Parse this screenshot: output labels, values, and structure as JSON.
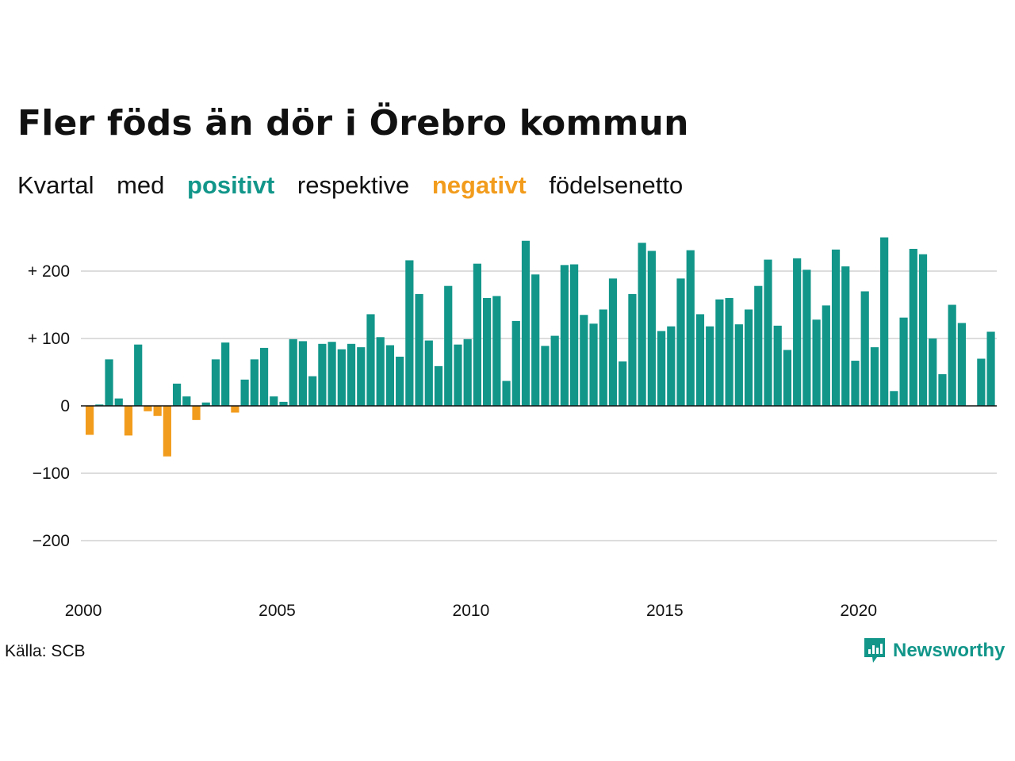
{
  "title": "Fler föds än dör i Örebro kommun",
  "subtitle": {
    "w1": "Kvartal",
    "w2": "med",
    "positive": "positivt",
    "w3": "respektive",
    "negative": "negativt",
    "w4": "födelsenetto"
  },
  "source": "Källa: SCB",
  "brand": "Newsworthy",
  "colors": {
    "positive": "#12968a",
    "negative": "#f29c1d",
    "grid": "#dddddd",
    "text": "#111111"
  },
  "icons": {
    "brand_logo": "newsworthy-logo-icon"
  },
  "chart_data": {
    "type": "bar",
    "x_start": "2000 Q1",
    "frequency": "quarterly",
    "ylim": [
      -250,
      260
    ],
    "yticks": [
      200,
      100,
      0,
      -100,
      -200
    ],
    "ytick_labels": [
      "+ 200",
      "+ 100",
      "0",
      "−100",
      "−200"
    ],
    "xticks": [
      2000,
      2005,
      2010,
      2015,
      2020
    ],
    "xtick_labels": [
      "2000",
      "2005",
      "2010",
      "2015",
      "2020"
    ],
    "grid": true,
    "values": [
      -43,
      2,
      69,
      11,
      -44,
      91,
      -8,
      -15,
      -75,
      33,
      14,
      -21,
      5,
      69,
      94,
      -10,
      39,
      69,
      86,
      14,
      6,
      99,
      96,
      44,
      92,
      95,
      84,
      92,
      87,
      136,
      102,
      90,
      73,
      216,
      166,
      97,
      59,
      178,
      91,
      99,
      211,
      160,
      163,
      37,
      126,
      245,
      195,
      89,
      104,
      209,
      210,
      135,
      122,
      143,
      189,
      66,
      166,
      242,
      230,
      111,
      118,
      189,
      231,
      136,
      118,
      158,
      160,
      121,
      143,
      178,
      217,
      119,
      83,
      219,
      202,
      128,
      149,
      232,
      207,
      67,
      170,
      87,
      250,
      22,
      131,
      233,
      225,
      100,
      47,
      150,
      123,
      0,
      70,
      110
    ]
  }
}
